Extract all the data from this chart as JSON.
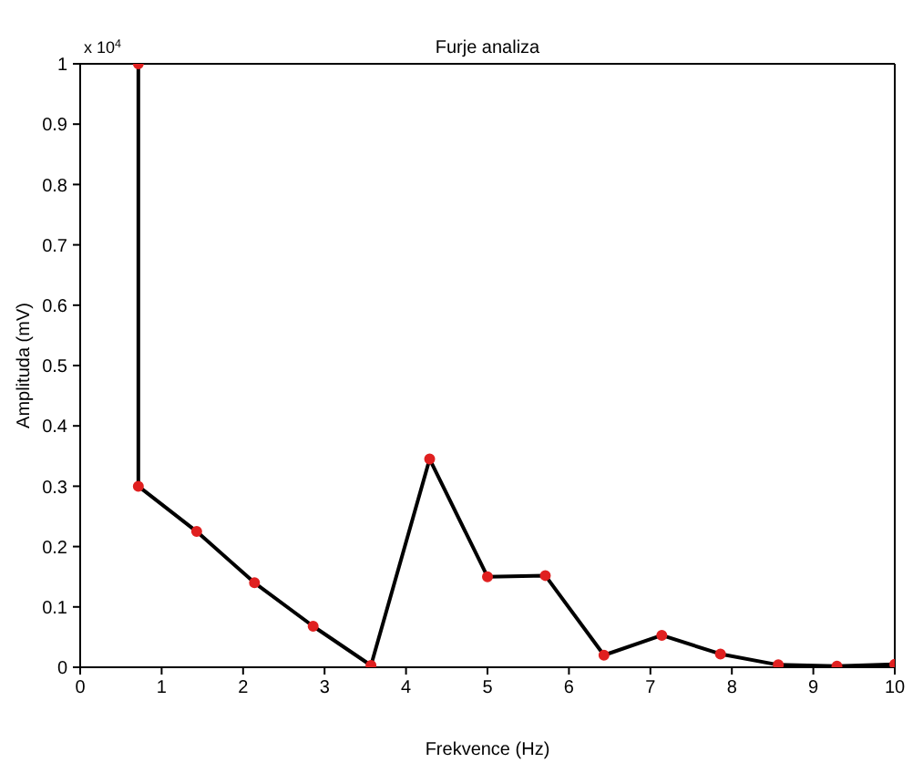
{
  "chart_data": {
    "type": "line",
    "title": "Furje analiza",
    "xlabel": "Frekvence (Hz)",
    "ylabel": "Amplituda (mV)",
    "annotations": [
      "x 10$^{4}$"
    ],
    "x": [
      0.714,
      0.714,
      1.43,
      2.14,
      2.86,
      3.57,
      4.29,
      5.0,
      5.71,
      6.43,
      7.14,
      7.86,
      8.57,
      9.29,
      10
    ],
    "series": [
      {
        "color": "#000000",
        "colors": [
          "#e02020",
          "#e02020",
          "#e02020",
          "#e02020",
          "#e02020",
          "#e02020",
          "#e02020",
          "#e02020",
          "#e02020",
          "#e02020",
          "#e02020",
          "#e02020",
          "#e02020",
          "#e02020",
          "#e02020"
        ],
        "values": [
          1,
          0.3,
          0.225,
          0.14,
          0.068,
          0.003,
          0.345,
          0.15,
          0.152,
          0.02,
          0.053,
          0.022,
          0.004,
          0.002,
          0.005
        ]
      }
    ],
    "xlim": [
      0,
      10
    ],
    "xticks": [
      0,
      1,
      2,
      3,
      4,
      5,
      6,
      7,
      8,
      9,
      10
    ],
    "ylim": [
      0,
      1
    ],
    "yticks": [
      0,
      0.1,
      0.2,
      0.3,
      0.4,
      0.5,
      0.6,
      0.7,
      0.8,
      0.9,
      1
    ],
    "grid": false,
    "legend": false,
    "marker": "circle",
    "line_style": "solid"
  }
}
